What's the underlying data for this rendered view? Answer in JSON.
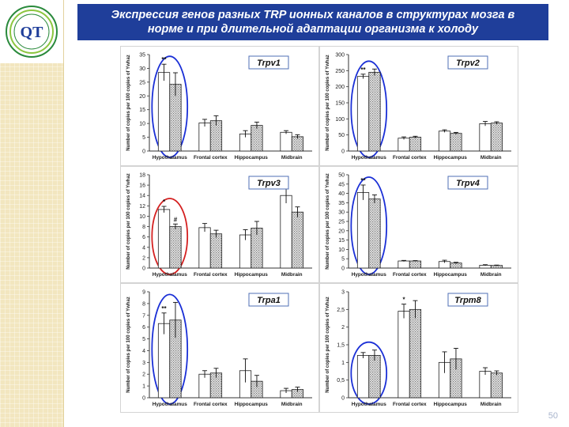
{
  "slide": {
    "title_line1": "Экспрессия генов  разных TRP ионных каналов в структурах мозга в",
    "title_line2": "норме и при длительной адаптации организма к холоду",
    "page_number": "50",
    "logo_letters": "QT"
  },
  "colors": {
    "title_bg": "#1f3e9a",
    "sidebar": "#f2e6bf",
    "blue_ellipse": "#1a2fd6",
    "red_ellipse": "#d42020",
    "bar_fill": "#ffffff",
    "bar_pattern": "#7a7a7a",
    "label_border": "#4f6fb6"
  },
  "chart_data": [
    {
      "type": "bar",
      "title": "Trpv1",
      "ylabel": "Number of copies per 100 copies of Ywhaz",
      "categories": [
        "Hypothalamus",
        "Frontal cortex",
        "Hippocampus",
        "Midbrain"
      ],
      "ylim": [
        0,
        35
      ],
      "yticks": [
        0,
        5,
        10,
        15,
        20,
        25,
        30,
        35
      ],
      "series": [
        {
          "values": [
            28.5,
            10.2,
            6.2,
            6.8
          ],
          "errors": [
            3.0,
            1.3,
            1.2,
            0.6
          ]
        },
        {
          "values": [
            24.2,
            11.0,
            9.3,
            5.2
          ],
          "errors": [
            4.2,
            1.8,
            1.2,
            0.7
          ]
        }
      ],
      "annotations": [
        {
          "text": "**",
          "category": 0,
          "series": 0
        }
      ],
      "highlight": {
        "category": 0,
        "color": "blue"
      }
    },
    {
      "type": "bar",
      "title": "Trpv2",
      "ylabel": "Number of copies per 100 copies of Ywhaz",
      "categories": [
        "Hypothalamus",
        "Frontal cortex",
        "Hippocampus",
        "Midbrain"
      ],
      "ylim": [
        0,
        300
      ],
      "yticks": [
        0,
        50,
        100,
        150,
        200,
        250,
        300
      ],
      "series": [
        {
          "values": [
            232,
            40,
            62,
            85
          ],
          "errors": [
            7,
            4,
            4,
            7
          ]
        },
        {
          "values": [
            245,
            43,
            55,
            87
          ],
          "errors": [
            10,
            3,
            3,
            4
          ]
        }
      ],
      "annotations": [
        {
          "text": "**",
          "category": 0,
          "series": 0
        }
      ],
      "highlight": {
        "category": 0,
        "color": "blue"
      }
    },
    {
      "type": "bar",
      "title": "Trpv3",
      "ylabel": "Number of copies per 100 copies of Ywhaz",
      "categories": [
        "Hypothalamus",
        "Frontal cortex",
        "Hippocampus",
        "Midbrain"
      ],
      "ylim": [
        0,
        18
      ],
      "yticks": [
        0,
        2,
        4,
        6,
        8,
        10,
        12,
        14,
        16,
        18
      ],
      "series": [
        {
          "values": [
            11.3,
            7.8,
            6.4,
            14.0
          ],
          "errors": [
            0.6,
            0.8,
            1.0,
            1.5
          ]
        },
        {
          "values": [
            8.0,
            6.6,
            7.7,
            10.8
          ],
          "errors": [
            0.5,
            0.7,
            1.3,
            1.0
          ]
        }
      ],
      "annotations": [
        {
          "text": "*",
          "category": 0,
          "series": 0
        },
        {
          "text": "#",
          "category": 0,
          "series": 1
        },
        {
          "text": "#",
          "category": 3,
          "series": 0
        }
      ],
      "highlight": {
        "category": 0,
        "color": "red"
      }
    },
    {
      "type": "bar",
      "title": "Trpv4",
      "ylabel": "Number of copies per 100 copies of Ywhaz",
      "categories": [
        "Hypothalamus",
        "Frontal cortex",
        "Hippocampus",
        "Midbrain"
      ],
      "ylim": [
        0,
        50
      ],
      "yticks": [
        0,
        5,
        10,
        15,
        20,
        25,
        30,
        35,
        40,
        45,
        50
      ],
      "series": [
        {
          "values": [
            40.5,
            3.8,
            3.5,
            1.5
          ],
          "errors": [
            4.0,
            0.3,
            0.7,
            0.3
          ]
        },
        {
          "values": [
            37.0,
            3.8,
            2.7,
            1.4
          ],
          "errors": [
            2.2,
            0.2,
            0.4,
            0.2
          ]
        }
      ],
      "annotations": [
        {
          "text": "**",
          "category": 0,
          "series": 0
        }
      ],
      "highlight": {
        "category": 0,
        "color": "blue"
      }
    },
    {
      "type": "bar",
      "title": "Trpa1",
      "ylabel": "Number of copies per 100 copies of Ywhaz",
      "categories": [
        "Hypothalamus",
        "Frontal cortex",
        "Hippocampus",
        "Midbrain"
      ],
      "ylim": [
        0,
        9
      ],
      "yticks": [
        0,
        1,
        2,
        3,
        4,
        5,
        6,
        7,
        8,
        9
      ],
      "series": [
        {
          "values": [
            6.3,
            2.0,
            2.3,
            0.6
          ],
          "errors": [
            0.9,
            0.3,
            1.0,
            0.2
          ]
        },
        {
          "values": [
            6.6,
            2.1,
            1.4,
            0.7
          ],
          "errors": [
            1.5,
            0.4,
            0.5,
            0.2
          ]
        }
      ],
      "annotations": [
        {
          "text": "**",
          "category": 0,
          "series": 0
        }
      ],
      "highlight": {
        "category": 0,
        "color": "blue"
      }
    },
    {
      "type": "bar",
      "title": "Trpm8",
      "ylabel": "Number of copies per 100 copies of Ywhaz",
      "categories": [
        "Hypothalamus",
        "Frontal cortex",
        "Hippocampus",
        "Midbrain"
      ],
      "ylim": [
        0,
        3
      ],
      "yticks": [
        "0",
        "0,5",
        "1",
        "1,5",
        "2",
        "2,5",
        "3"
      ],
      "series": [
        {
          "values": [
            1.2,
            2.45,
            1.0,
            0.75
          ],
          "errors": [
            0.08,
            0.2,
            0.3,
            0.1
          ]
        },
        {
          "values": [
            1.2,
            2.5,
            1.1,
            0.7
          ],
          "errors": [
            0.15,
            0.25,
            0.3,
            0.06
          ]
        }
      ],
      "annotations": [
        {
          "text": "*",
          "category": 1,
          "series": 0
        }
      ],
      "highlight": {
        "category": 0,
        "color": "blue"
      }
    }
  ]
}
